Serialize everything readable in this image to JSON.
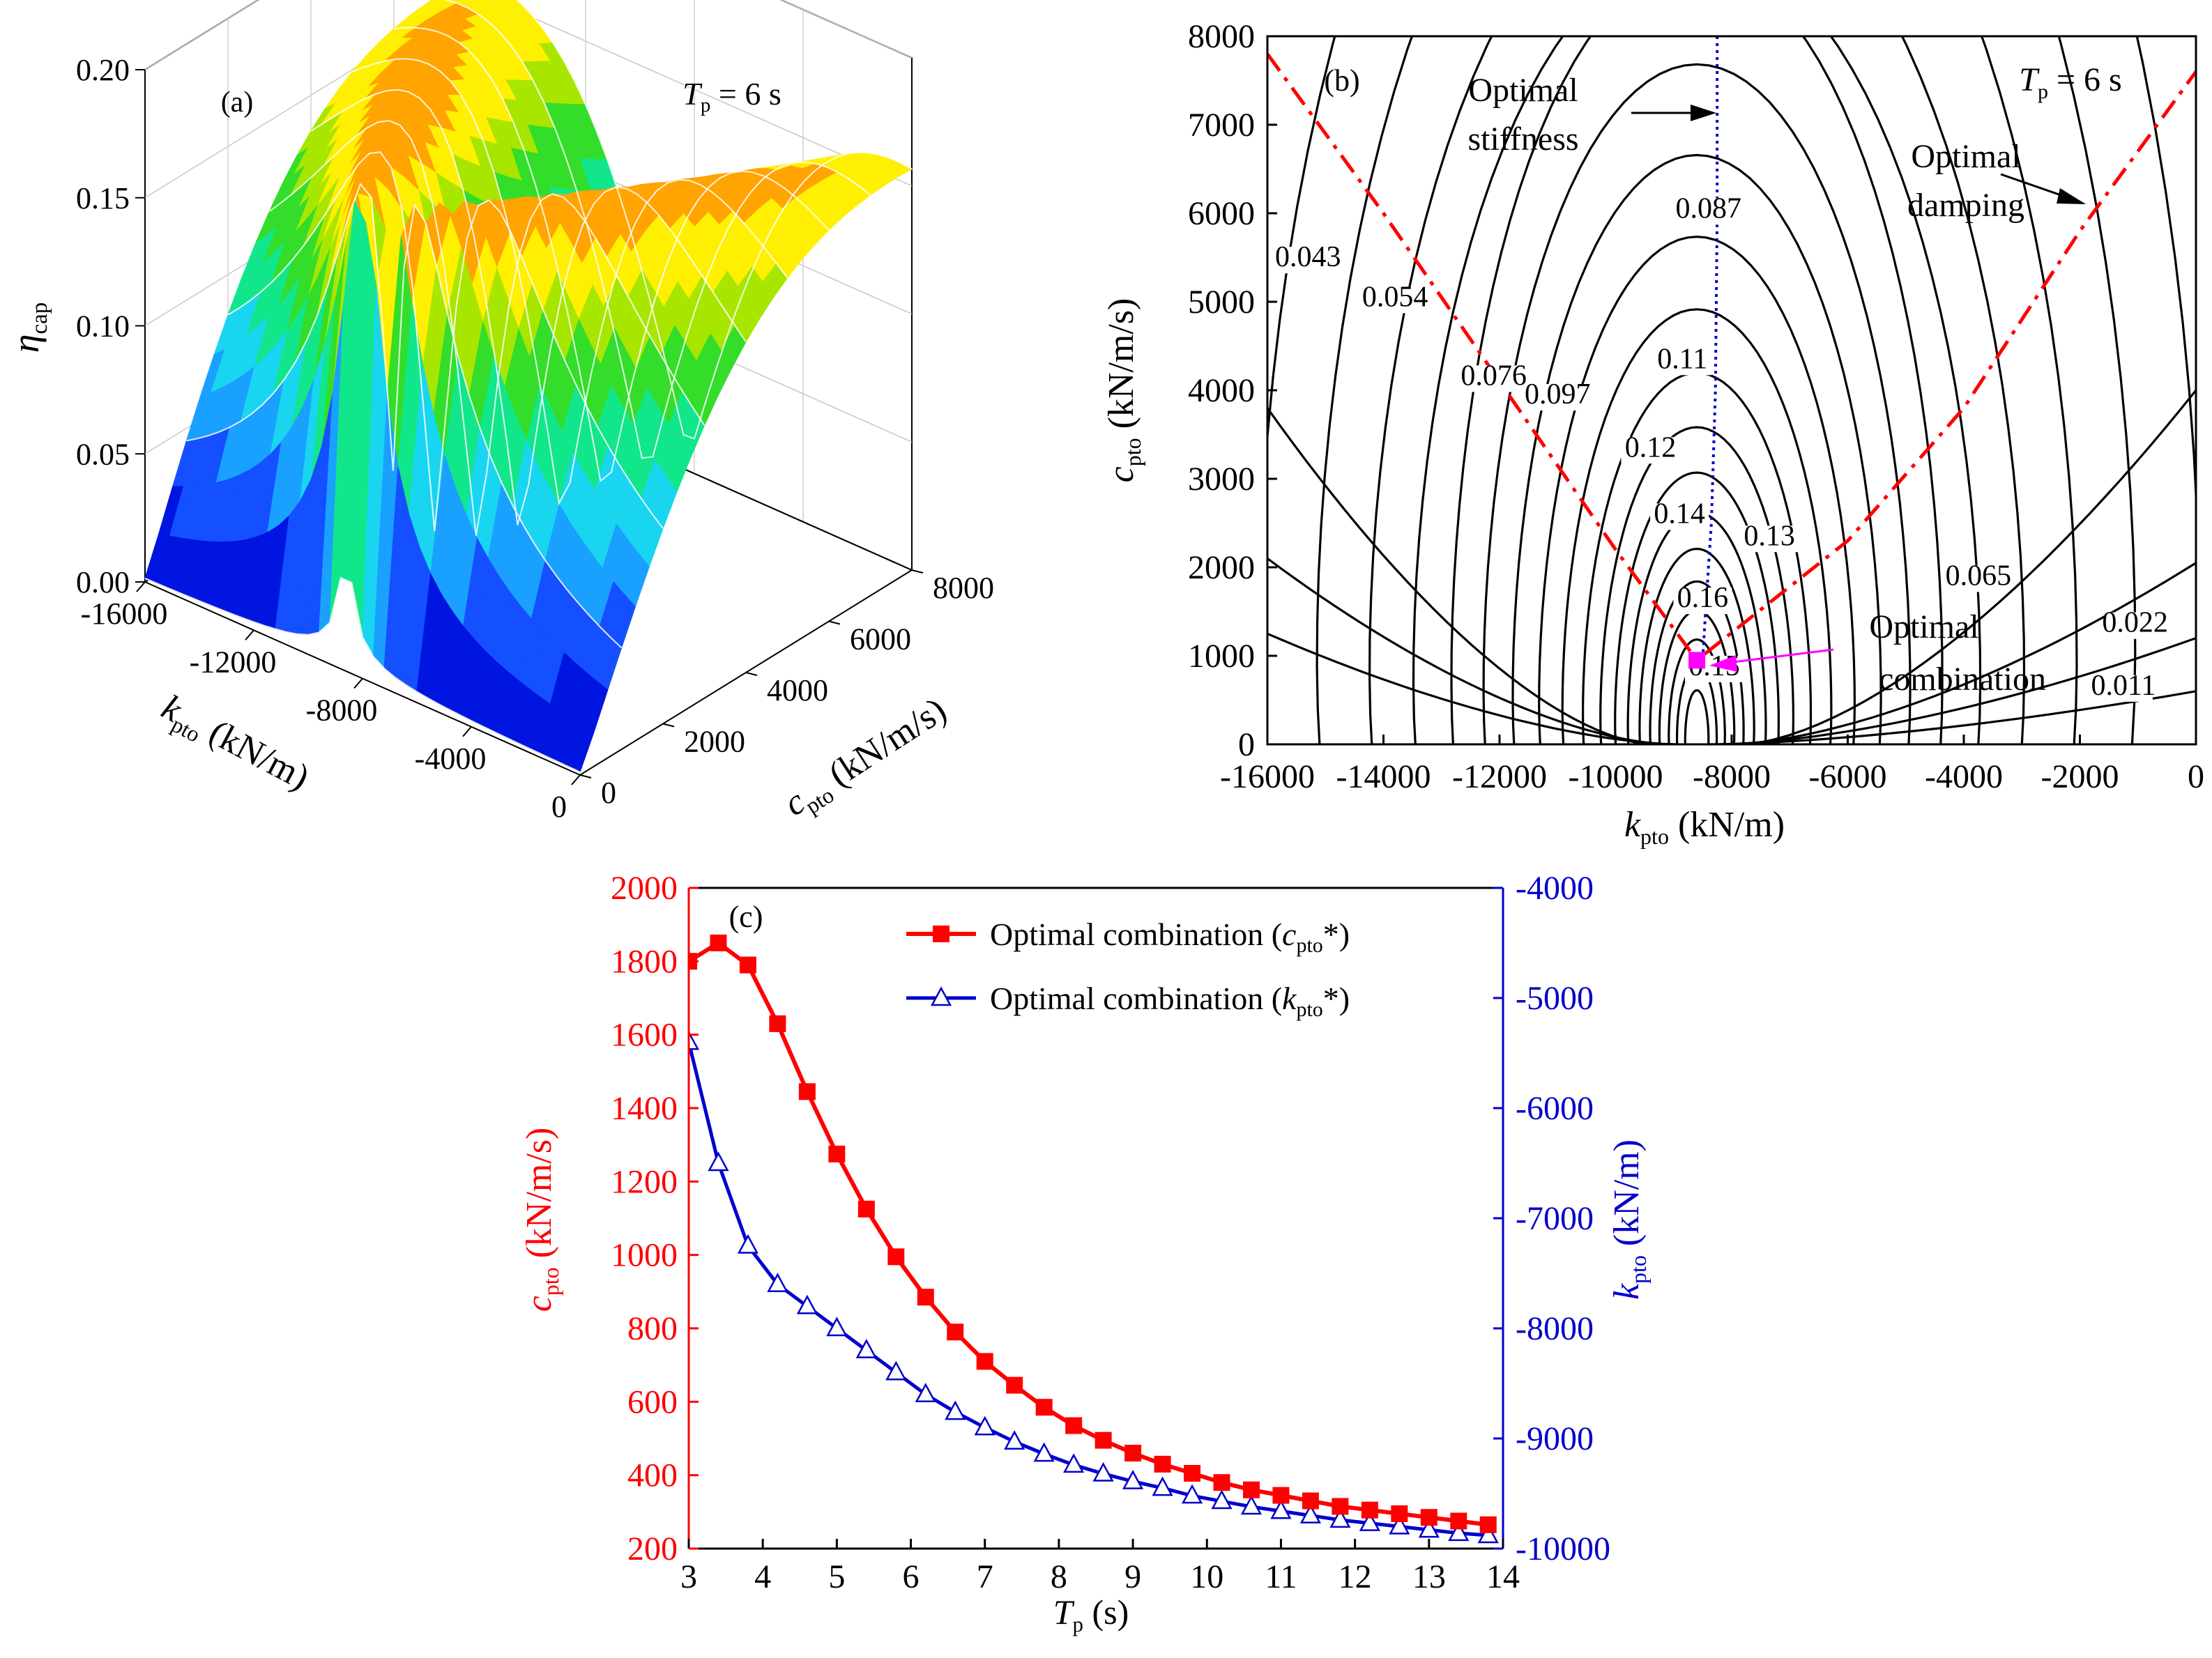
{
  "chart_data": [
    {
      "panel": "a",
      "type": "surface3d",
      "panel_label": "(a)",
      "annotation": {
        "symbol": "T",
        "sub": "p",
        "text": " = 6 s"
      },
      "zlabel": {
        "symbol": "η",
        "sub": "cap"
      },
      "xlabel": {
        "symbol": "k",
        "sub": "pto",
        "unit": "(kN/m)"
      },
      "ylabel": {
        "symbol": "c",
        "sub": "pto",
        "unit": "(kN/m/s)"
      },
      "z_ticks": [
        "0.00",
        "0.05",
        "0.10",
        "0.15",
        "0.20"
      ],
      "x_ticks": [
        "-16000",
        "-12000",
        "-8000",
        "-4000",
        "0"
      ],
      "y_ticks": [
        "0",
        "2000",
        "4000",
        "6000",
        "8000"
      ],
      "xlim": [
        -16000,
        0
      ],
      "ylim": [
        0,
        8000
      ],
      "zlim": [
        0,
        0.2
      ],
      "peak": {
        "k": -8600,
        "c": 950,
        "eta": 0.18
      }
    },
    {
      "panel": "b",
      "type": "contour",
      "panel_label": "(b)",
      "annotation": {
        "symbol": "T",
        "sub": "p",
        "text": " = 6 s"
      },
      "xlabel": {
        "symbol": "k",
        "sub": "pto",
        "unit": "(kN/m)"
      },
      "ylabel": {
        "symbol": "c",
        "sub": "pto",
        "unit": "(kN/m/s)"
      },
      "xlim": [
        -16000,
        0
      ],
      "ylim": [
        0,
        8000
      ],
      "x_ticks": [
        "-16000",
        "-14000",
        "-12000",
        "-10000",
        "-8000",
        "-6000",
        "-4000",
        "-2000",
        "0"
      ],
      "y_ticks": [
        "0",
        "1000",
        "2000",
        "3000",
        "4000",
        "5000",
        "6000",
        "7000",
        "8000"
      ],
      "contour_labels": [
        {
          "text": "0.043",
          "k": -15300,
          "c": 5400
        },
        {
          "text": "0.054",
          "k": -13800,
          "c": 4950
        },
        {
          "text": "0.087",
          "k": -8400,
          "c": 5950
        },
        {
          "text": "0.076",
          "k": -12100,
          "c": 4060
        },
        {
          "text": "0.097",
          "k": -11000,
          "c": 3850
        },
        {
          "text": "0.11",
          "k": -8850,
          "c": 4250
        },
        {
          "text": "0.12",
          "k": -9400,
          "c": 3250
        },
        {
          "text": "0.14",
          "k": -8900,
          "c": 2500
        },
        {
          "text": "0.13",
          "k": -7350,
          "c": 2250
        },
        {
          "text": "0.16",
          "k": -8500,
          "c": 1550
        },
        {
          "text": "0.065",
          "k": -3750,
          "c": 1800
        },
        {
          "text": "0.022",
          "k": -1050,
          "c": 1270
        },
        {
          "text": "0.011",
          "k": -1250,
          "c": 560
        },
        {
          "text": "0.15",
          "k": -8300,
          "c": 780
        }
      ],
      "annotations": [
        {
          "lines": [
            "Optimal",
            "stiffness"
          ]
        },
        {
          "lines": [
            "Optimal",
            "damping"
          ]
        },
        {
          "lines": [
            "Optimal",
            "combination"
          ]
        }
      ],
      "optimal_stiffness_curve": {
        "k": [
          -8250,
          -8250,
          -8280,
          -8350,
          -8450,
          -8500
        ],
        "c": [
          8000,
          6000,
          4000,
          2500,
          1500,
          950
        ]
      },
      "optimal_damping_curve": {
        "k": [
          -16000,
          -14000,
          -12000,
          -10000,
          -8600,
          -6000,
          -4000,
          -2000,
          0
        ],
        "c": [
          7800,
          6000,
          4100,
          2200,
          950,
          2300,
          3800,
          5800,
          7600
        ]
      },
      "optimal_point": {
        "k": -8600,
        "c": 950
      },
      "colors": {
        "contour": "#000000",
        "damping": "#ff0000",
        "stiffness": "#0000cc",
        "point": "#ff00ff"
      }
    },
    {
      "panel": "c",
      "type": "line",
      "panel_label": "(c)",
      "xlabel": {
        "symbol": "T",
        "sub": "p",
        "unit": " (s)"
      },
      "ylabel_left": {
        "symbol": "c",
        "sub": "pto",
        "unit": " (kN/m/s)"
      },
      "ylabel_right": {
        "symbol": "k",
        "sub": "pto",
        "unit": " (kN/m)"
      },
      "xlim": [
        3,
        14
      ],
      "ylim_left": [
        200,
        2000
      ],
      "ylim_right": [
        -10000,
        -4000
      ],
      "x_ticks": [
        "3",
        "4",
        "5",
        "6",
        "7",
        "8",
        "9",
        "10",
        "11",
        "12",
        "13",
        "14"
      ],
      "y_ticks_left": [
        "200",
        "400",
        "600",
        "800",
        "1000",
        "1200",
        "1400",
        "1600",
        "1800",
        "2000"
      ],
      "y_ticks_right": [
        "-10000",
        "-9000",
        "-8000",
        "-7000",
        "-6000",
        "-5000",
        "-4000"
      ],
      "x": [
        3.0,
        3.4,
        3.8,
        4.2,
        4.6,
        5.0,
        5.4,
        5.8,
        6.2,
        6.6,
        7.0,
        7.4,
        7.8,
        8.2,
        8.6,
        9.0,
        9.4,
        9.8,
        10.2,
        10.6,
        11.0,
        11.4,
        11.8,
        12.2,
        12.6,
        13.0,
        13.4,
        13.8
      ],
      "series": [
        {
          "name": "Optimal combination (c_pto*)",
          "legend": {
            "prefix": "Optimal combination (",
            "symbol": "c",
            "sub": "pto",
            "suffix": "*)"
          },
          "axis": "left",
          "color": "#ff0000",
          "marker": "square",
          "values": [
            1800,
            1850,
            1790,
            1630,
            1445,
            1275,
            1125,
            995,
            885,
            790,
            710,
            645,
            585,
            535,
            495,
            460,
            430,
            405,
            380,
            360,
            345,
            330,
            315,
            305,
            295,
            285,
            275,
            265
          ]
        },
        {
          "name": "Optimal combination (k_pto*)",
          "legend": {
            "prefix": "Optimal combination (",
            "symbol": "k",
            "sub": "pto",
            "suffix": "*)"
          },
          "axis": "right",
          "color": "#0000cc",
          "marker": "triangle",
          "values": [
            -5400,
            -6500,
            -7250,
            -7600,
            -7800,
            -8000,
            -8200,
            -8400,
            -8600,
            -8760,
            -8900,
            -9030,
            -9140,
            -9240,
            -9320,
            -9390,
            -9450,
            -9520,
            -9570,
            -9620,
            -9660,
            -9700,
            -9740,
            -9770,
            -9800,
            -9830,
            -9860,
            -9880
          ]
        }
      ]
    }
  ]
}
